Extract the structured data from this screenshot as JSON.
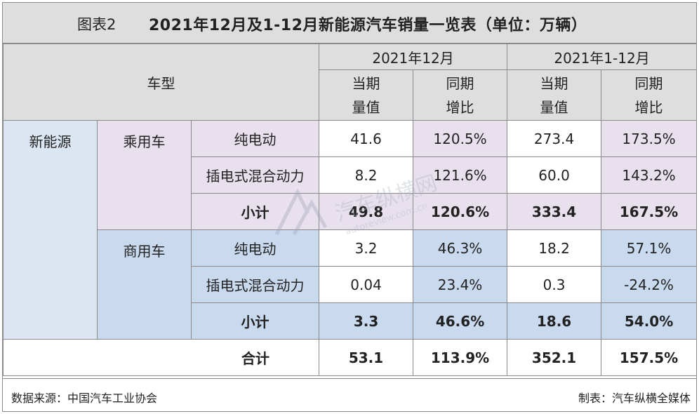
{
  "title": {
    "label": "图表2",
    "text": "2021年12月及1-12月新能源汽车销量一览表（单位：万辆）"
  },
  "header": {
    "vehicle_type": "车型",
    "period_dec": "2021年12月",
    "period_ytd": "2021年1-12月",
    "col_value_1": "当期",
    "col_value_2": "量值",
    "col_growth_1": "同期",
    "col_growth_2": "增比"
  },
  "category": "新能源",
  "groups": {
    "passenger": {
      "name": "乘用车",
      "ev": {
        "label": "纯电动",
        "dec_value": "41.6",
        "dec_growth": "120.5%",
        "ytd_value": "273.4",
        "ytd_growth": "173.5%"
      },
      "phev": {
        "label": "插电式混合动力",
        "dec_value": "8.2",
        "dec_growth": "121.6%",
        "ytd_value": "60.0",
        "ytd_growth": "143.2%"
      },
      "subtotal": {
        "label": "小计",
        "dec_value": "49.8",
        "dec_growth": "120.6%",
        "ytd_value": "333.4",
        "ytd_growth": "167.5%"
      }
    },
    "commercial": {
      "name": "商用车",
      "ev": {
        "label": "纯电动",
        "dec_value": "3.2",
        "dec_growth": "46.3%",
        "ytd_value": "18.2",
        "ytd_growth": "57.1%"
      },
      "phev": {
        "label": "插电式混合动力",
        "dec_value": "0.04",
        "dec_growth": "23.4%",
        "ytd_value": "0.3",
        "ytd_growth": "-24.2%"
      },
      "subtotal": {
        "label": "小计",
        "dec_value": "3.3",
        "dec_growth": "46.6%",
        "ytd_value": "18.6",
        "ytd_growth": "54.0%"
      }
    }
  },
  "total": {
    "label": "合计",
    "dec_value": "53.1",
    "dec_growth": "113.9%",
    "ytd_value": "352.1",
    "ytd_growth": "157.5%"
  },
  "footer": {
    "source": "数据来源：中国汽车工业协会",
    "maker": "制表：汽车纵横全媒体"
  },
  "watermark": {
    "text": "汽车纵横网",
    "url": "autoreview.com.cn"
  }
}
